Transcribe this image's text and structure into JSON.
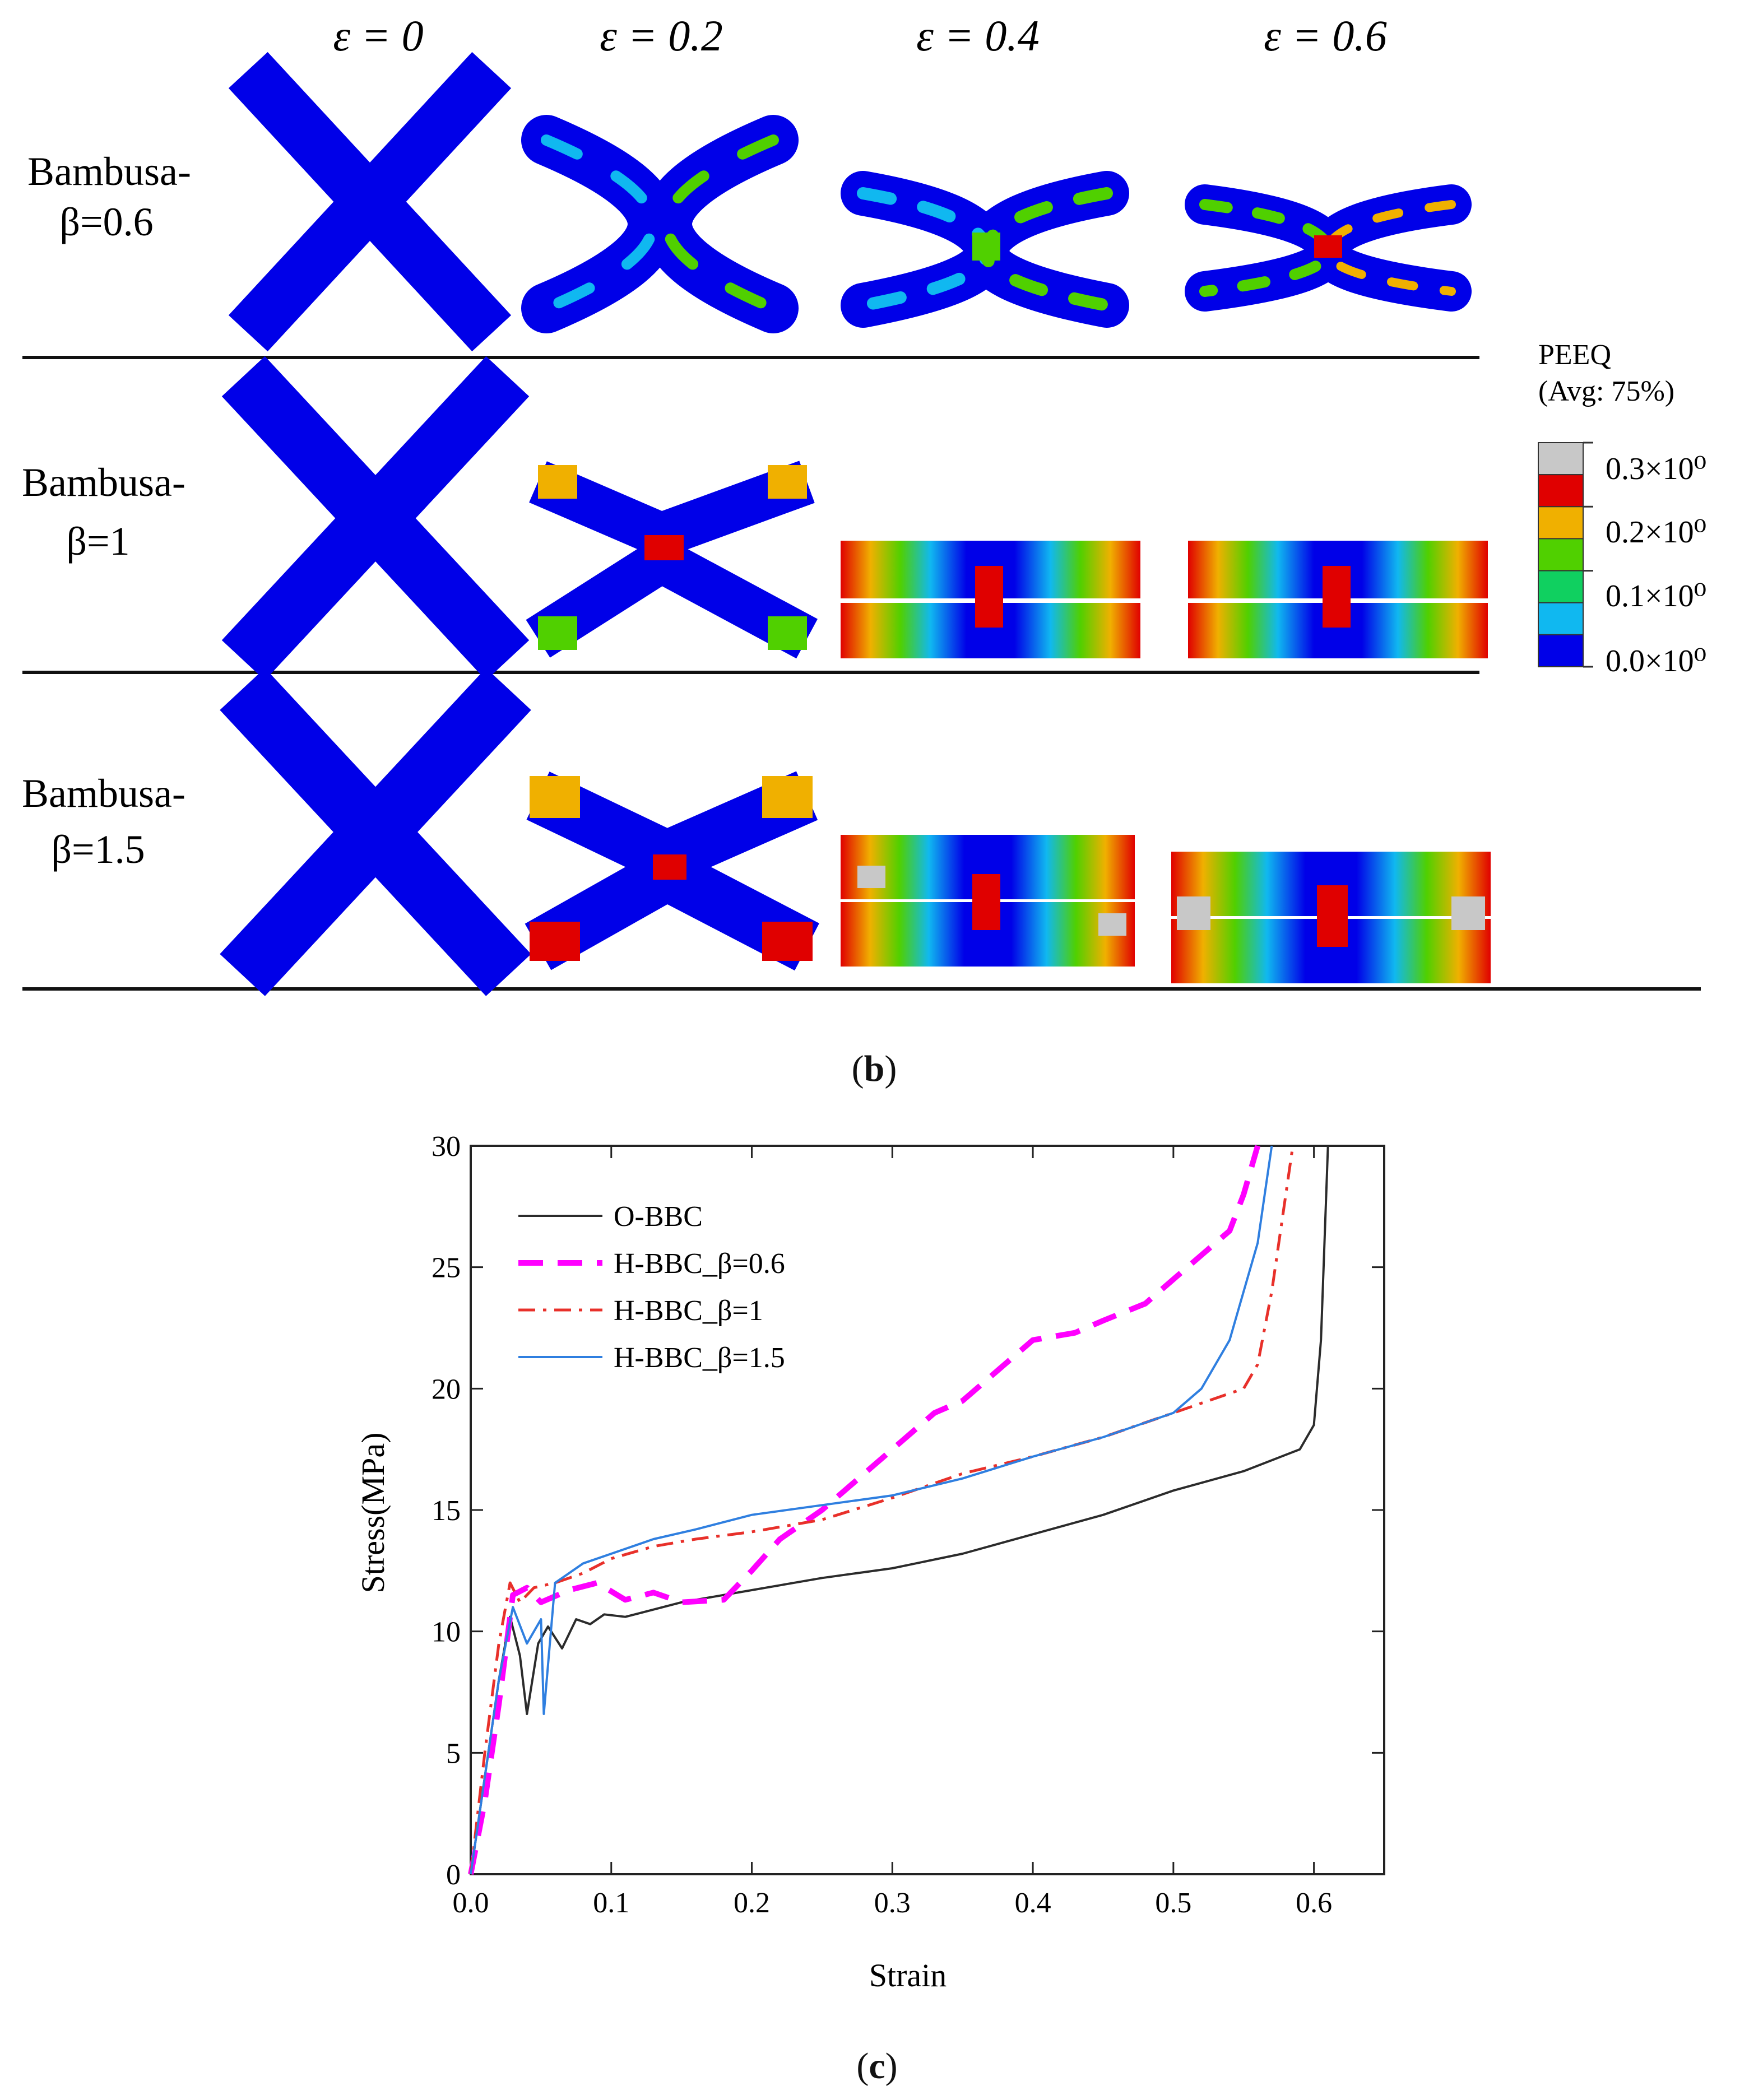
{
  "panel_b": {
    "column_headers": [
      "ε = 0",
      "ε = 0.2",
      "ε = 0.4",
      "ε = 0.6"
    ],
    "rows": [
      {
        "label_line1": "Bambusa-",
        "label_line2": "β=0.6"
      },
      {
        "label_line1": "Bambusa-",
        "label_line2": "β=1"
      },
      {
        "label_line1": "Bambusa-",
        "label_line2": "β=1.5"
      }
    ],
    "legend": {
      "title_line1": "PEEQ",
      "title_line2": "(Avg: 75%)",
      "ticks": [
        "0.3×10⁰",
        "0.2×10⁰",
        "0.1×10⁰",
        "0.0×10⁰"
      ],
      "colors": [
        "#c8c8c8",
        "#e00000",
        "#f0b000",
        "#50d000",
        "#10d060",
        "#10b8f0",
        "#0000e8"
      ]
    },
    "caption_prefix": "(",
    "caption_letter": "b",
    "caption_suffix": ")"
  },
  "panel_c": {
    "caption_prefix": "(",
    "caption_letter": "c",
    "caption_suffix": ")"
  },
  "chart_data": {
    "type": "line",
    "title": "",
    "xlabel": "Strain",
    "ylabel": "Stress(MPa)",
    "xlim": [
      0.0,
      0.65
    ],
    "ylim": [
      0,
      30
    ],
    "xticks": [
      "0.0",
      "0.1",
      "0.2",
      "0.3",
      "0.4",
      "0.5",
      "0.6"
    ],
    "yticks": [
      "0",
      "5",
      "10",
      "15",
      "20",
      "25",
      "30"
    ],
    "legend_position": "top-left",
    "series": [
      {
        "name": "O-BBC",
        "color": "#2b2b2b",
        "style": "solid",
        "x": [
          0,
          0.01,
          0.02,
          0.028,
          0.035,
          0.04,
          0.048,
          0.055,
          0.065,
          0.075,
          0.085,
          0.095,
          0.11,
          0.15,
          0.2,
          0.25,
          0.3,
          0.35,
          0.4,
          0.45,
          0.5,
          0.55,
          0.59,
          0.6,
          0.605,
          0.61
        ],
        "y": [
          0,
          4,
          8,
          10.6,
          9,
          6.6,
          9.5,
          10.2,
          9.3,
          10.5,
          10.3,
          10.7,
          10.6,
          11.2,
          11.7,
          12.2,
          12.6,
          13.2,
          14,
          14.8,
          15.8,
          16.6,
          17.5,
          18.5,
          22,
          30
        ]
      },
      {
        "name": "H-BBC_β=0.6",
        "color": "#ff00ff",
        "style": "dashed",
        "x": [
          0,
          0.01,
          0.02,
          0.03,
          0.04,
          0.05,
          0.07,
          0.09,
          0.11,
          0.13,
          0.15,
          0.18,
          0.2,
          0.22,
          0.25,
          0.28,
          0.3,
          0.33,
          0.35,
          0.38,
          0.4,
          0.43,
          0.45,
          0.48,
          0.5,
          0.52,
          0.54,
          0.55,
          0.56
        ],
        "y": [
          0,
          3,
          7,
          11.5,
          11.8,
          11.2,
          11.7,
          12,
          11.3,
          11.6,
          11.2,
          11.3,
          12.5,
          13.8,
          15,
          16.5,
          17.5,
          19,
          19.5,
          21,
          22,
          22.3,
          22.8,
          23.5,
          24.5,
          25.5,
          26.5,
          28,
          30
        ]
      },
      {
        "name": "H-BBC_β=1",
        "color": "#e8302a",
        "style": "dashdot",
        "x": [
          0,
          0.01,
          0.02,
          0.028,
          0.035,
          0.045,
          0.06,
          0.08,
          0.1,
          0.13,
          0.16,
          0.2,
          0.25,
          0.3,
          0.35,
          0.4,
          0.45,
          0.5,
          0.55,
          0.56,
          0.57,
          0.58,
          0.585
        ],
        "y": [
          0,
          5,
          9.5,
          12,
          11.2,
          11.8,
          12,
          12.4,
          13,
          13.5,
          13.8,
          14.1,
          14.6,
          15.5,
          16.5,
          17.2,
          18,
          19,
          20,
          21,
          24,
          28,
          30
        ]
      },
      {
        "name": "H-BBC_β=1.5",
        "color": "#2f7fe0",
        "style": "solid",
        "x": [
          0,
          0.01,
          0.02,
          0.03,
          0.04,
          0.05,
          0.052,
          0.06,
          0.08,
          0.1,
          0.13,
          0.16,
          0.2,
          0.25,
          0.3,
          0.35,
          0.4,
          0.45,
          0.5,
          0.52,
          0.54,
          0.55,
          0.56,
          0.565,
          0.57
        ],
        "y": [
          0,
          4,
          8,
          11,
          9.5,
          10.5,
          6.6,
          12,
          12.8,
          13.2,
          13.8,
          14.2,
          14.8,
          15.2,
          15.6,
          16.3,
          17.2,
          18,
          19,
          20,
          22,
          24,
          26,
          28,
          30
        ]
      }
    ]
  }
}
